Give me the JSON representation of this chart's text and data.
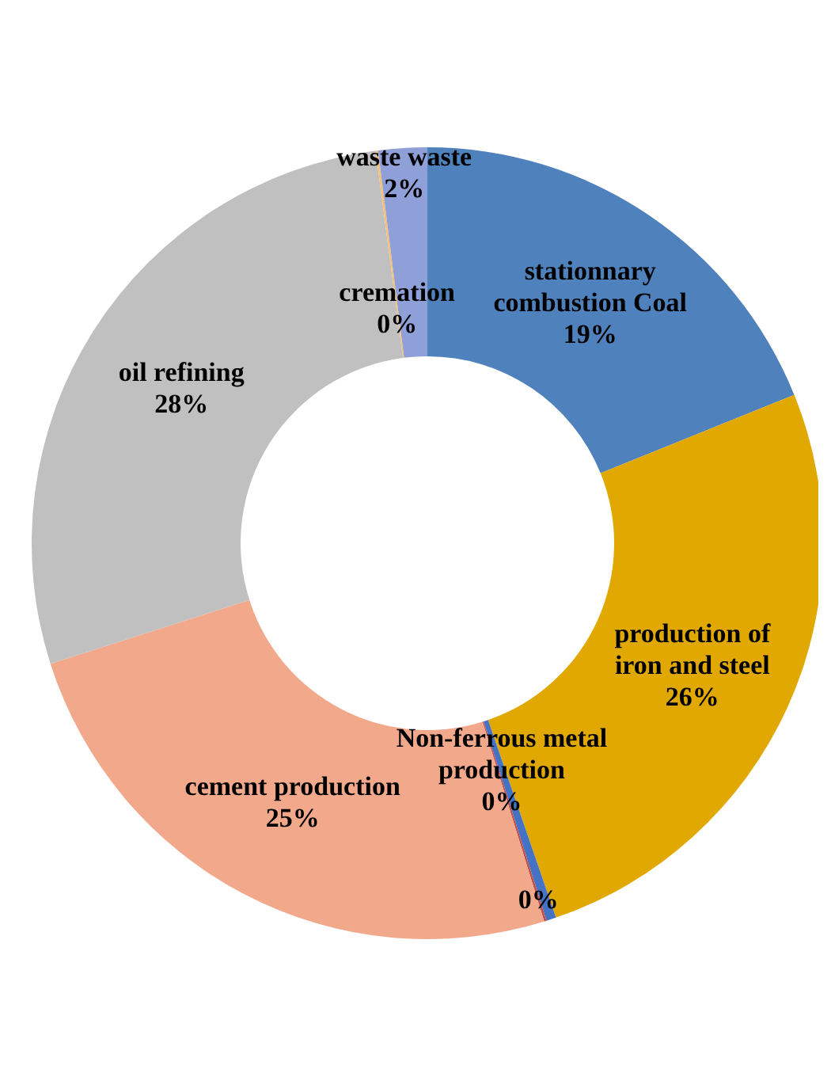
{
  "chart_data": {
    "type": "donut",
    "categories": [
      "stationnary combustion Coal",
      "production of iron and steel",
      "Non-ferrous metal production",
      null,
      "cement production",
      "oil refining",
      "cremation",
      "waste waste"
    ],
    "values": [
      19,
      26,
      0.4,
      0.1,
      25,
      28,
      0.1,
      2
    ],
    "value_labels": [
      "19%",
      "26%",
      "0%",
      "0%",
      "25%",
      "28%",
      "0%",
      "2%"
    ],
    "colors": [
      "#4f81bd",
      "#e0a800",
      "#4472c4",
      "#c0504d",
      "#f2a98b",
      "#c0c0c0",
      "#f5c07a",
      "#8fa0d8"
    ]
  }
}
